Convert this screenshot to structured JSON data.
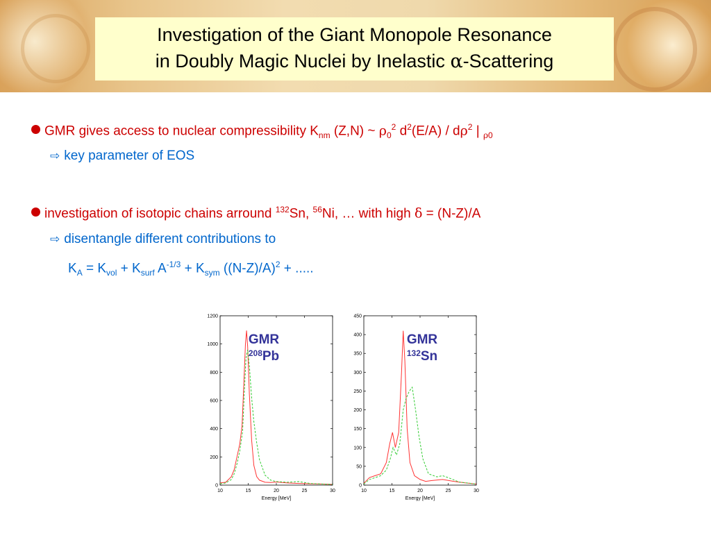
{
  "title": {
    "line1": "Investigation of the Giant Monopole Resonance",
    "line2_pre": "in Doubly Magic Nuclei by Inelastic ",
    "line2_greek": "α",
    "line2_post": "-Scattering"
  },
  "bullet1": {
    "text_a": "GMR gives access to nuclear compressibility K",
    "sub_nm": "nm",
    "text_b": " (Z,N)  ~  ",
    "rho": "ρ",
    "sub_0": "0",
    "sup_2": "2",
    "text_c": " d",
    "sup_2b": "2",
    "text_d": "(E/A) / d",
    "rho2": "ρ",
    "sup_2c": "2",
    "text_e": " | ",
    "rho3": "ρ",
    "text_f": "0",
    "sub_point": "key parameter of EOS"
  },
  "bullet2": {
    "text_a": "investigation of isotopic chains arround ",
    "sup_132": "132",
    "text_b": "Sn, ",
    "sup_56": "56",
    "text_c": "Ni, … with high ",
    "delta": "δ",
    "text_d": " = (N-Z)/A",
    "sub_point": "disentangle different contributions to"
  },
  "formula": {
    "k": "K",
    "sub_a": "A",
    "eq": "  =  K",
    "sub_vol": "vol",
    "plus1": "  + K",
    "sub_surf": "surf",
    "a": " A",
    "sup_exp": "-1/3",
    "plus2": "  + K",
    "sub_sym": "sym",
    "paren": " ((N-Z)/A)",
    "sup_2": "2",
    "tail": " + ....."
  },
  "chart_data": [
    {
      "type": "line",
      "label_main": "GMR",
      "label_mass": "208",
      "label_elem": "Pb",
      "xlabel": "Energy [MeV]",
      "ylabel": "",
      "xlim": [
        10,
        30
      ],
      "ylim": [
        0,
        1200
      ],
      "xticks": [
        "10",
        "15",
        "20",
        "25",
        "30"
      ],
      "yticks": [
        "0",
        "200",
        "400",
        "600",
        "800",
        "1000",
        "1200"
      ],
      "colors": {
        "solid": "#ff3333",
        "dashed": "#33cc33"
      },
      "series": [
        {
          "style": "solid",
          "x": [
            10,
            11,
            12,
            12.5,
            13,
            13.5,
            13.9,
            14.2,
            14.5,
            14.7,
            14.9,
            15.2,
            15.6,
            16,
            16.5,
            17,
            18,
            19,
            20,
            22,
            24,
            26,
            28,
            30
          ],
          "y": [
            15,
            20,
            60,
            110,
            200,
            290,
            420,
            700,
            1000,
            1095,
            980,
            650,
            320,
            140,
            60,
            35,
            20,
            18,
            22,
            15,
            12,
            10,
            8,
            5
          ]
        },
        {
          "style": "dashed",
          "x": [
            10,
            11,
            12,
            12.5,
            13,
            13.5,
            14,
            14.3,
            14.6,
            14.9,
            15.2,
            15.6,
            16,
            16.5,
            17,
            18,
            19,
            20,
            22,
            24,
            26,
            28,
            30
          ],
          "y": [
            10,
            15,
            40,
            80,
            150,
            240,
            380,
            650,
            900,
            960,
            850,
            620,
            450,
            300,
            180,
            70,
            35,
            25,
            20,
            25,
            12,
            8,
            5
          ]
        }
      ]
    },
    {
      "type": "line",
      "label_main": "GMR",
      "label_mass": "132",
      "label_elem": "Sn",
      "xlabel": "Energy [MeV]",
      "ylabel": "",
      "xlim": [
        10,
        30
      ],
      "ylim": [
        0,
        450
      ],
      "xticks": [
        "10",
        "15",
        "20",
        "25",
        "30"
      ],
      "yticks": [
        "0",
        "50",
        "100",
        "150",
        "200",
        "250",
        "300",
        "350",
        "400",
        "450"
      ],
      "colors": {
        "solid": "#ff3333",
        "dashed": "#33cc33"
      },
      "series": [
        {
          "style": "solid",
          "x": [
            10,
            11,
            12,
            13,
            14,
            14.6,
            15.1,
            15.6,
            16.2,
            16.7,
            17,
            17.3,
            17.7,
            18.2,
            19,
            20,
            21,
            22,
            24,
            26,
            28,
            30
          ],
          "y": [
            5,
            20,
            25,
            30,
            60,
            110,
            140,
            100,
            140,
            300,
            410,
            330,
            150,
            60,
            25,
            15,
            10,
            12,
            15,
            10,
            6,
            3
          ]
        },
        {
          "style": "dashed",
          "x": [
            10,
            11,
            12,
            13,
            14,
            14.7,
            15.2,
            15.8,
            16.4,
            17,
            17.5,
            18.1,
            18.6,
            19.2,
            19.8,
            20.5,
            21.5,
            23,
            24,
            25,
            27,
            30
          ],
          "y": [
            3,
            15,
            20,
            25,
            40,
            70,
            100,
            80,
            110,
            200,
            230,
            250,
            260,
            200,
            130,
            70,
            30,
            22,
            25,
            20,
            8,
            3
          ]
        }
      ]
    }
  ]
}
